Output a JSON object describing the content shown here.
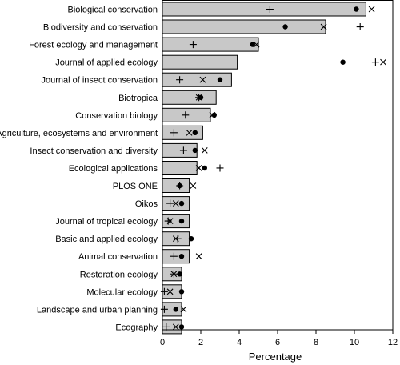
{
  "chart_data": {
    "type": "bar",
    "orientation": "horizontal",
    "xlabel": "Percentage",
    "ylabel": "",
    "title": "",
    "xlim": [
      0,
      12
    ],
    "xticks": [
      "0",
      "2",
      "4",
      "6",
      "8",
      "10",
      "12"
    ],
    "grid": false,
    "legend": "none",
    "bar_color": "#c8c8c8",
    "marker_color": "#000000",
    "categories": [
      "Biological conservation",
      "Biodiversity and conservation",
      "Forest ecology and management",
      "Journal of applied ecology",
      "Journal of insect conservation",
      "Biotropica",
      "Conservation biology",
      "Agriculture, ecosystems and environment",
      "Insect conservation and diversity",
      "Ecological applications",
      "PLOS ONE",
      "Oikos",
      "Journal of tropical ecology",
      "Basic and applied ecology",
      "Animal conservation",
      "Restoration ecology",
      "Molecular ecology",
      "Landscape and urban planning",
      "Ecography"
    ],
    "bar_values": [
      10.6,
      8.5,
      5.0,
      3.9,
      3.6,
      2.8,
      2.5,
      2.1,
      1.8,
      1.8,
      1.4,
      1.4,
      1.4,
      1.4,
      1.4,
      1.0,
      1.0,
      1.0,
      1.0
    ],
    "series": [
      {
        "marker": "plus",
        "values": [
          5.6,
          10.3,
          1.6,
          11.1,
          0.9,
          1.9,
          1.2,
          0.6,
          1.1,
          3.0,
          0.9,
          0.4,
          0.3,
          0.8,
          0.6,
          0.6,
          0.1,
          0.1,
          0.2
        ]
      },
      {
        "marker": "dot",
        "values": [
          10.1,
          6.4,
          4.7,
          9.4,
          3.0,
          2.0,
          2.7,
          1.7,
          1.7,
          2.2,
          0.9,
          1.0,
          1.0,
          1.5,
          1.0,
          0.9,
          1.0,
          0.7,
          1.0
        ]
      },
      {
        "marker": "cross",
        "values": [
          10.9,
          8.4,
          4.9,
          11.5,
          2.1,
          1.9,
          2.6,
          1.4,
          2.2,
          1.9,
          1.6,
          0.7,
          0.4,
          0.7,
          1.9,
          0.6,
          0.4,
          1.1,
          0.7
        ]
      }
    ]
  }
}
